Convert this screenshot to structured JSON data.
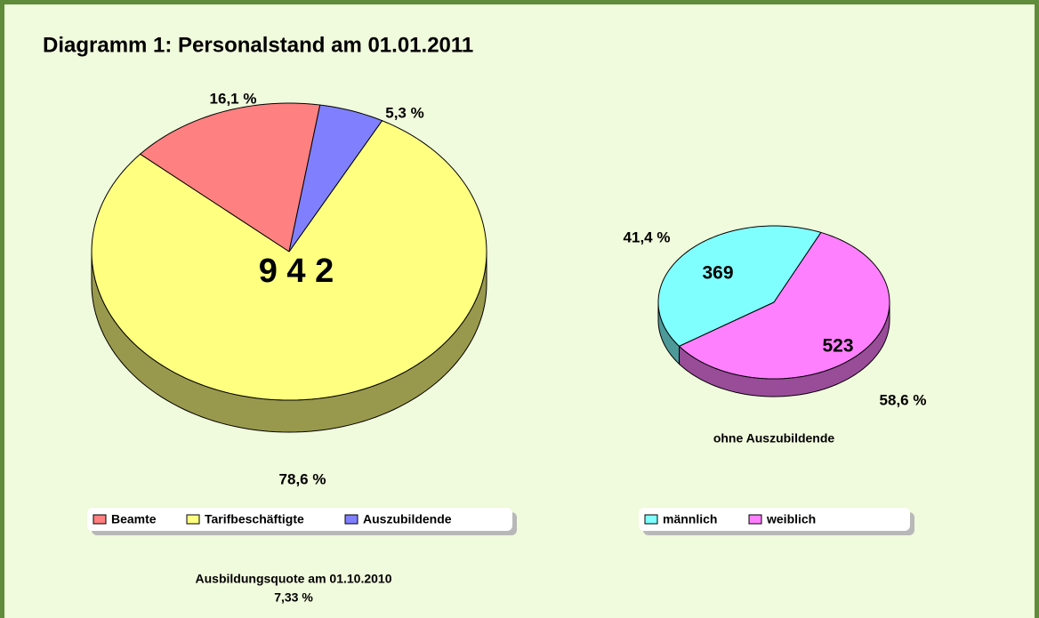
{
  "title": "Diagramm 1: Personalstand am 01.01.2011",
  "note": [
    "Ausbildungsquote am 01.10.2010",
    "7,33 %"
  ],
  "chart_data": [
    {
      "type": "pie",
      "center_label": "9 4 2",
      "categories": [
        "Beamte",
        "Tarifbeschäftigte",
        "Auszubildende"
      ],
      "values": [
        16.1,
        78.6,
        5.3
      ],
      "value_labels": [
        "16,1 %",
        "78,6 %",
        "5,3 %"
      ],
      "colors": [
        "#ff8080",
        "#ffff80",
        "#8080ff"
      ]
    },
    {
      "type": "pie",
      "subtitle": "ohne Auszubildende",
      "categories": [
        "männlich",
        "weiblich"
      ],
      "values": [
        41.4,
        58.6
      ],
      "value_labels": [
        "41,4 %",
        "58,6 %"
      ],
      "counts": [
        369,
        523
      ],
      "colors": [
        "#80ffff",
        "#ff80ff"
      ]
    }
  ]
}
